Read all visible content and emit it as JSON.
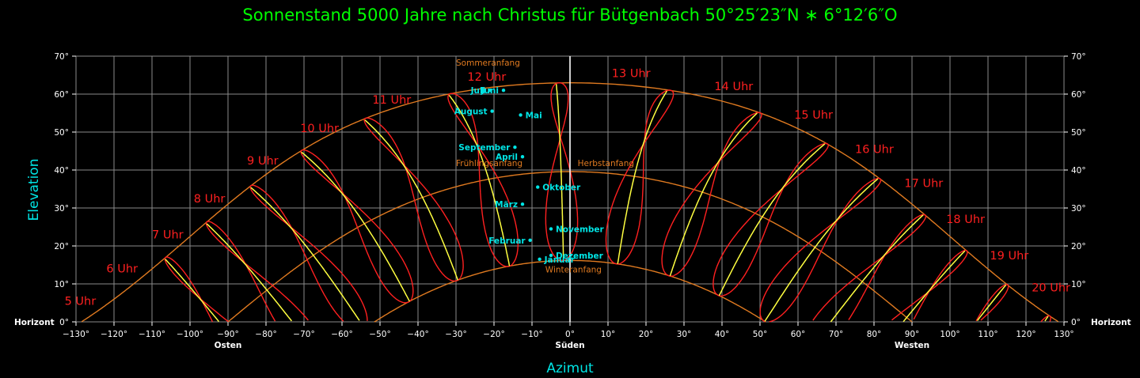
{
  "chart_data": {
    "type": "line",
    "title": "Sonnenstand 5000 Jahre nach Christus für Bütgenbach  50°25′23″N ∗ 6°12′6″O",
    "xlabel": "Azimut",
    "ylabel": "Elevation",
    "xlim": [
      -130,
      130
    ],
    "ylim": [
      0,
      70
    ],
    "grid": true,
    "x_ticks": [
      {
        "value": -130,
        "label": "−130°"
      },
      {
        "value": -120,
        "label": "−120°"
      },
      {
        "value": -110,
        "label": "−110°"
      },
      {
        "value": -100,
        "label": "−100°"
      },
      {
        "value": -90,
        "label": "−90°"
      },
      {
        "value": -80,
        "label": "−80°"
      },
      {
        "value": -70,
        "label": "−70°"
      },
      {
        "value": -60,
        "label": "−60°"
      },
      {
        "value": -50,
        "label": "−50°"
      },
      {
        "value": -40,
        "label": "−40°"
      },
      {
        "value": -30,
        "label": "−30°"
      },
      {
        "value": -20,
        "label": "−20°"
      },
      {
        "value": -10,
        "label": "−10°"
      },
      {
        "value": 0,
        "label": "0°"
      },
      {
        "value": 10,
        "label": "10°"
      },
      {
        "value": 20,
        "label": "20°"
      },
      {
        "value": 30,
        "label": "30°"
      },
      {
        "value": 40,
        "label": "40°"
      },
      {
        "value": 50,
        "label": "50°"
      },
      {
        "value": 60,
        "label": "60°"
      },
      {
        "value": 70,
        "label": "70°"
      },
      {
        "value": 80,
        "label": "80°"
      },
      {
        "value": 90,
        "label": "90°"
      },
      {
        "value": 100,
        "label": "100°"
      },
      {
        "value": 110,
        "label": "110°"
      },
      {
        "value": 120,
        "label": "120°"
      },
      {
        "value": 130,
        "label": "130°"
      }
    ],
    "y_ticks": [
      {
        "value": 0,
        "label": "0°"
      },
      {
        "value": 10,
        "label": "10°"
      },
      {
        "value": 20,
        "label": "20°"
      },
      {
        "value": 30,
        "label": "30°"
      },
      {
        "value": 40,
        "label": "40°"
      },
      {
        "value": 50,
        "label": "50°"
      },
      {
        "value": 60,
        "label": "60°"
      },
      {
        "value": 70,
        "label": "70°"
      }
    ],
    "horizon_label": "Horizont",
    "direction_labels": [
      {
        "x": -90,
        "label": "Osten"
      },
      {
        "x": 0,
        "label": "Süden"
      },
      {
        "x": 90,
        "label": "Westen"
      }
    ],
    "seasonal_curves": [
      {
        "name": "Sommeranfang",
        "declination": 23.4,
        "color": "#e07a20",
        "label_x": -30,
        "label_y": 67.5
      },
      {
        "name": "Frühlingsanfang",
        "declination": 0,
        "color": "#e07a20",
        "label_x": -30,
        "label_y": 41
      },
      {
        "name": "Herbstanfang",
        "declination": 0,
        "color": "#e07a20",
        "label_x": 2,
        "label_y": 41
      },
      {
        "name": "Winteranfang",
        "declination": -23.4,
        "color": "#e07a20",
        "label_x": -6.5,
        "label_y": 13
      }
    ],
    "hour_analemmas": [
      {
        "label": "5 Uhr",
        "hour": 5,
        "label_x": -133,
        "label_y": 4.5
      },
      {
        "label": "6 Uhr",
        "hour": 6,
        "label_x": -122,
        "label_y": 13
      },
      {
        "label": "7 Uhr",
        "hour": 7,
        "label_x": -110,
        "label_y": 22
      },
      {
        "label": "8 Uhr",
        "hour": 8,
        "label_x": -99,
        "label_y": 31.5
      },
      {
        "label": "9 Uhr",
        "hour": 9,
        "label_x": -85,
        "label_y": 41.5
      },
      {
        "label": "10 Uhr",
        "hour": 10,
        "label_x": -71,
        "label_y": 50
      },
      {
        "label": "11 Uhr",
        "hour": 11,
        "label_x": -52,
        "label_y": 57.5
      },
      {
        "label": "12 Uhr",
        "hour": 12,
        "label_x": -27,
        "label_y": 63.5
      },
      {
        "label": "13 Uhr",
        "hour": 13,
        "label_x": 11,
        "label_y": 64.5
      },
      {
        "label": "14 Uhr",
        "hour": 14,
        "label_x": 38,
        "label_y": 61
      },
      {
        "label": "15 Uhr",
        "hour": 15,
        "label_x": 59,
        "label_y": 53.5
      },
      {
        "label": "16 Uhr",
        "hour": 16,
        "label_x": 75,
        "label_y": 44.5
      },
      {
        "label": "17 Uhr",
        "hour": 17,
        "label_x": 88,
        "label_y": 35.5
      },
      {
        "label": "18 Uhr",
        "hour": 18,
        "label_x": 99,
        "label_y": 26
      },
      {
        "label": "19 Uhr",
        "hour": 19,
        "label_x": 110.5,
        "label_y": 16.5
      },
      {
        "label": "20 Uhr",
        "hour": 20,
        "label_x": 121.5,
        "label_y": 8
      }
    ],
    "noon_months": [
      {
        "name": "Januar",
        "x": -8,
        "y": 16.5,
        "align": "start"
      },
      {
        "name": "Februar",
        "x": -10.5,
        "y": 21.5,
        "align": "end"
      },
      {
        "name": "März",
        "x": -12.5,
        "y": 31,
        "align": "end"
      },
      {
        "name": "April",
        "x": -12.5,
        "y": 43.5,
        "align": "end"
      },
      {
        "name": "Mai",
        "x": -13,
        "y": 54.5,
        "align": "start"
      },
      {
        "name": "Juni",
        "x": -17.5,
        "y": 61,
        "align": "end"
      },
      {
        "name": "Juli",
        "x": -21,
        "y": 61,
        "align": "end"
      },
      {
        "name": "August",
        "x": -20.5,
        "y": 55.5,
        "align": "end"
      },
      {
        "name": "September",
        "x": -14.5,
        "y": 46,
        "align": "end"
      },
      {
        "name": "Oktober",
        "x": -8.5,
        "y": 35.5,
        "align": "start"
      },
      {
        "name": "November",
        "x": -5,
        "y": 24.5,
        "align": "start"
      },
      {
        "name": "Dezember",
        "x": -5,
        "y": 17.5,
        "align": "start"
      }
    ],
    "colors": {
      "grid": "#8a8a8a",
      "seasonal": "#e07a20",
      "analemma": "#ff2020",
      "equation_line": "#ffff40",
      "month_marker": "#00e5e5",
      "meridian": "#ffffff"
    }
  }
}
